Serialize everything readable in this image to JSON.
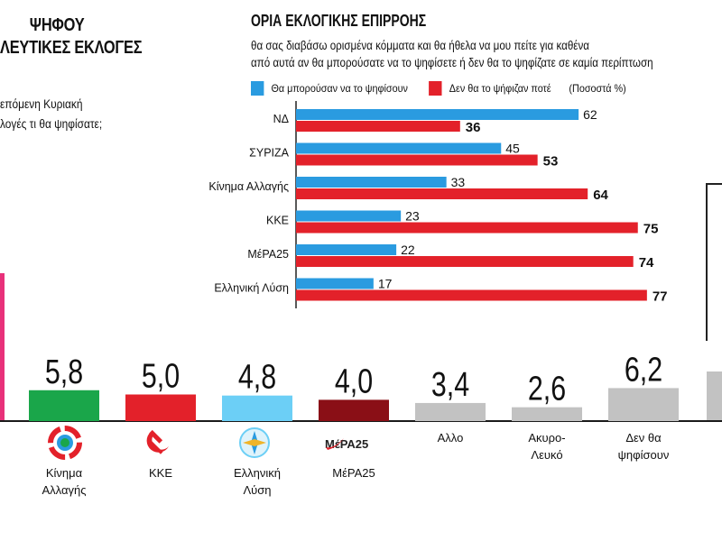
{
  "left_header": {
    "title_line1": "ΨΗΦΟΥ",
    "title_line2": "ΛΕΥΤΙΚΕΣ ΕΚΛΟΓΕΣ",
    "question_line1": "επόμενη Κυριακή",
    "question_line2": "λογές τι θα ψηφίσατε;"
  },
  "inset": {
    "title": "ΟΡΙΑ ΕΚΛΟΓΙΚΗΣ ΕΠΙΡΡΟΗΣ",
    "question_line1": "θα σας διαβάσω ορισμένα κόμματα και θα ήθελα να μου πείτε για καθένα",
    "question_line2": "από αυτά αν θα μπορούσατε να το ψηφίσετε ή δεν θα το ψηφίζατε σε καμία περίπτωση",
    "unit_note": "(Ποσοστά %)"
  },
  "colors": {
    "blue": "#2a9be0",
    "red": "#e3212a",
    "green": "#1aa64a",
    "kke_red": "#e3212a",
    "light_blue": "#6ccff6",
    "dark_red": "#8a0f16",
    "gray": "#c2c2c2"
  },
  "logos": {
    "kinima": "kinima-allagis-logo-icon",
    "kke": "hammer-sickle-icon",
    "elliniki": "elliniki-lysi-logo-icon",
    "mera25_text": "ΜέΡΑ25"
  },
  "chart_data": [
    {
      "type": "bar",
      "orientation": "horizontal",
      "title": "ΟΡΙΑ ΕΚΛΟΓΙΚΗΣ ΕΠΙΡΡΟΗΣ",
      "categories": [
        "ΝΔ",
        "ΣΥΡΙΖΑ",
        "Κίνημα Αλλαγής",
        "ΚΚΕ",
        "ΜέΡΑ25",
        "Ελληνική Λύση"
      ],
      "series": [
        {
          "name": "Θα μπορούσαν να το ψηφίσουν",
          "values": [
            62,
            45,
            33,
            23,
            22,
            17
          ]
        },
        {
          "name": "Δεν θα το ψήφιζαν ποτέ",
          "values": [
            36,
            53,
            64,
            75,
            74,
            77
          ]
        }
      ],
      "xlim": [
        0,
        100
      ],
      "unit": "(Ποσοστά %)"
    },
    {
      "type": "bar",
      "orientation": "vertical",
      "title": "",
      "categories": [
        "Κίνημα Αλλαγής",
        "ΚΚΕ",
        "Ελληνική Λύση",
        "ΜέΡΑ25",
        "Αλλο",
        "Ακυρο-Λευκό",
        "Δεν θα ψηφίσουν"
      ],
      "label_lines": [
        [
          "Κίνημα",
          "Αλλαγής"
        ],
        [
          "ΚΚΕ"
        ],
        [
          "Ελληνική",
          "Λύση"
        ],
        [
          "ΜέΡΑ25"
        ],
        [
          "Αλλο"
        ],
        [
          "Ακυρο-",
          "Λευκό"
        ],
        [
          "Δεν θα",
          "ψηφίσουν"
        ]
      ],
      "values": [
        5.8,
        5.0,
        4.8,
        4.0,
        3.4,
        2.6,
        6.2
      ],
      "value_labels": [
        "5,8",
        "5,0",
        "4,8",
        "4,0",
        "3,4",
        "2,6",
        "6,2"
      ],
      "colors": [
        "#1aa64a",
        "#e3212a",
        "#6ccff6",
        "#8a0f16",
        "#c2c2c2",
        "#c2c2c2",
        "#c2c2c2"
      ]
    }
  ]
}
